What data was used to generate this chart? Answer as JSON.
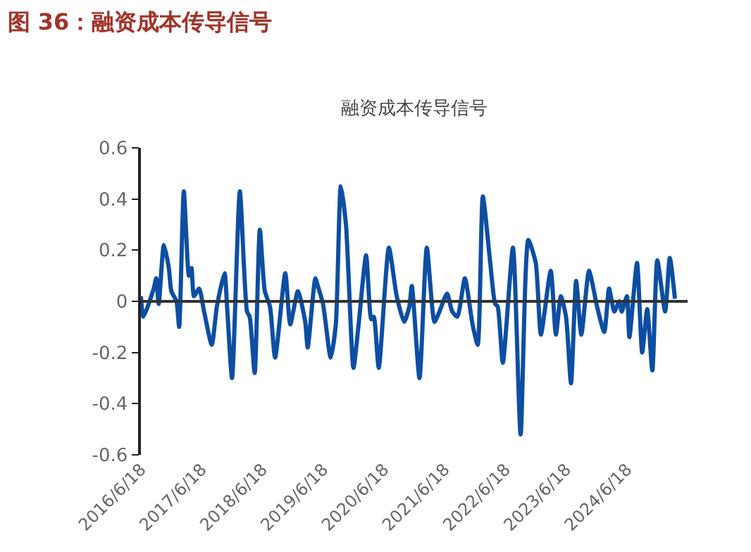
{
  "chart_data": {
    "type": "line",
    "title": "图 36：融资成本传导信号",
    "subtitle": "融资成本传导信号",
    "x": [
      "2016-06-18",
      "2016-07-03",
      "2016-09-03",
      "2016-09-18",
      "2016-10-03",
      "2016-11-03",
      "2016-12-03",
      "2016-12-18",
      "2017-01-18",
      "2017-02-03",
      "2017-03-03",
      "2017-04-03",
      "2017-04-18",
      "2017-05-03",
      "2017-06-03",
      "2017-07-03",
      "2017-08-18",
      "2017-09-18",
      "2017-11-03",
      "2017-11-18",
      "2017-12-18",
      "2018-02-03",
      "2018-03-18",
      "2018-04-03",
      "2018-05-03",
      "2018-06-03",
      "2018-07-03",
      "2018-08-03",
      "2018-09-03",
      "2018-11-03",
      "2018-12-03",
      "2019-01-18",
      "2019-03-03",
      "2019-03-18",
      "2019-05-03",
      "2019-05-18",
      "2019-06-18",
      "2019-08-03",
      "2019-09-03",
      "2019-10-03",
      "2019-11-03",
      "2019-12-18",
      "2020-01-18",
      "2020-03-03",
      "2020-04-03",
      "2020-04-18",
      "2020-05-18",
      "2020-07-18",
      "2020-09-03",
      "2020-10-18",
      "2020-11-18",
      "2020-12-03",
      "2021-01-18",
      "2021-03-03",
      "2021-04-18",
      "2021-05-18",
      "2021-07-03",
      "2021-08-03",
      "2021-09-03",
      "2021-10-18",
      "2021-12-03",
      "2022-01-03",
      "2022-02-03",
      "2022-03-18",
      "2022-04-18",
      "2022-05-03",
      "2022-06-03",
      "2022-08-03",
      "2022-09-18",
      "2022-11-03",
      "2022-12-18",
      "2023-01-18",
      "2023-03-18",
      "2023-04-18",
      "2023-05-18",
      "2023-06-18",
      "2023-07-18",
      "2023-08-18",
      "2023-09-18",
      "2023-11-03",
      "2023-12-03",
      "2023-12-18",
      "2024-02-03",
      "2024-03-03",
      "2024-04-03",
      "2024-05-03",
      "2024-05-18",
      "2024-06-18",
      "2024-07-03",
      "2024-08-18",
      "2024-09-18",
      "2024-10-18",
      "2024-11-18",
      "2024-12-18",
      "2025-02-03",
      "2025-03-03",
      "2025-04-03"
    ],
    "series": [
      {
        "color": "#0d4ea3",
        "values": [
          0.02,
          -0.06,
          0.05,
          0.09,
          -0.01,
          0.22,
          0.13,
          0.04,
          0.0,
          -0.1,
          0.43,
          0.1,
          0.13,
          0.02,
          0.05,
          -0.04,
          -0.17,
          -0.02,
          0.11,
          -0.02,
          -0.3,
          0.43,
          -0.04,
          -0.06,
          -0.28,
          0.28,
          0.04,
          -0.02,
          -0.22,
          0.11,
          -0.09,
          0.04,
          -0.08,
          -0.18,
          0.09,
          0.06,
          -0.01,
          -0.22,
          -0.09,
          0.45,
          0.3,
          -0.26,
          -0.09,
          0.18,
          -0.07,
          -0.06,
          -0.26,
          0.21,
          0.02,
          -0.08,
          -0.02,
          0.06,
          -0.3,
          0.21,
          -0.08,
          -0.04,
          0.03,
          -0.04,
          -0.06,
          0.09,
          -0.09,
          -0.17,
          0.41,
          0.16,
          -0.01,
          -0.02,
          -0.24,
          0.21,
          -0.52,
          0.24,
          0.15,
          -0.13,
          0.12,
          -0.13,
          0.02,
          -0.06,
          -0.32,
          0.08,
          -0.13,
          0.12,
          0.04,
          -0.01,
          -0.12,
          0.05,
          -0.04,
          0.0,
          -0.04,
          0.02,
          -0.14,
          0.15,
          -0.2,
          -0.03,
          -0.27,
          0.16,
          -0.04,
          0.17,
          0.01
        ]
      }
    ],
    "xlim": [
      "2016-06-18",
      "2025-06-18"
    ],
    "xticks": [
      {
        "value": "2016-06-18",
        "label": "2016/6/18"
      },
      {
        "value": "2017-06-18",
        "label": "2017/6/18"
      },
      {
        "value": "2018-06-18",
        "label": "2018/6/18"
      },
      {
        "value": "2019-06-18",
        "label": "2019/6/18"
      },
      {
        "value": "2020-06-18",
        "label": "2020/6/18"
      },
      {
        "value": "2021-06-18",
        "label": "2021/6/18"
      },
      {
        "value": "2022-06-18",
        "label": "2022/6/18"
      },
      {
        "value": "2023-06-18",
        "label": "2023/6/18"
      },
      {
        "value": "2024-06-18",
        "label": "2024/6/18"
      }
    ],
    "ylim": [
      -0.6,
      0.6
    ],
    "yticks": [
      {
        "value": -0.6,
        "label": "-0.6"
      },
      {
        "value": -0.4,
        "label": "-0.4"
      },
      {
        "value": -0.2,
        "label": "-0.2"
      },
      {
        "value": 0,
        "label": "0"
      },
      {
        "value": 0.2,
        "label": "0.2"
      },
      {
        "value": 0.4,
        "label": "0.4"
      },
      {
        "value": 0.6,
        "label": "0.6"
      }
    ],
    "ref_lines": [
      {
        "axis": "y",
        "value": 0,
        "color": "#333333"
      }
    ],
    "grid": false,
    "marker": "none",
    "line_style": "solid"
  }
}
